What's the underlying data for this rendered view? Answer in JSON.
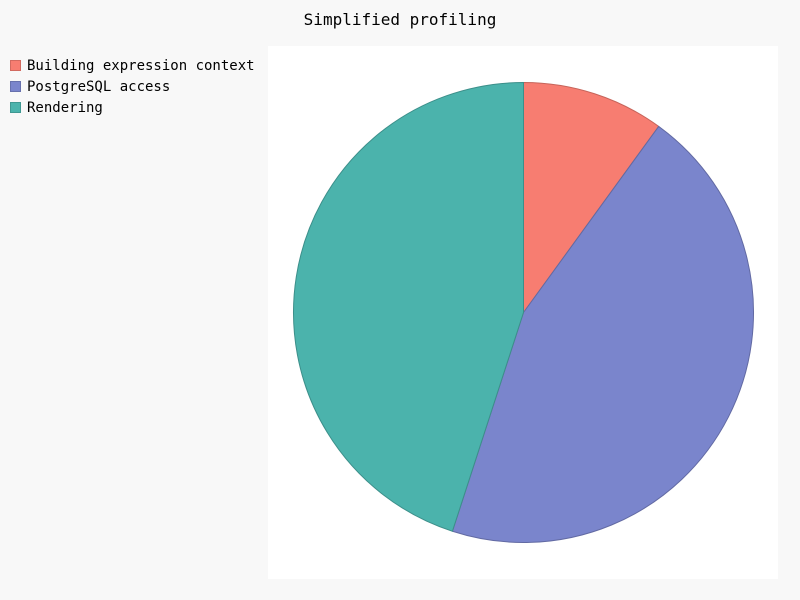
{
  "chart_data": {
    "type": "pie",
    "title": "Simplified profiling",
    "legend_position": "top-left",
    "series": [
      {
        "name": "Building expression context",
        "value": 10,
        "color": "#f77d71"
      },
      {
        "name": "PostgreSQL access",
        "value": 45,
        "color": "#7a85cc"
      },
      {
        "name": "Rendering",
        "value": 45,
        "color": "#4bb3ac"
      }
    ]
  }
}
